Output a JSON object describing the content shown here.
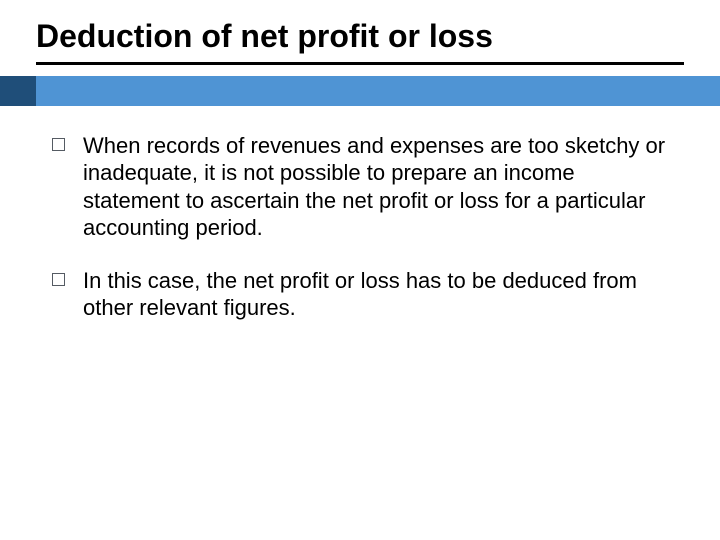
{
  "slide": {
    "title": "Deduction of net profit or loss",
    "title_fontsize": 32,
    "title_color": "#000000",
    "underline_color": "#000000",
    "accent_bar": {
      "left_color": "#1f4e79",
      "right_color": "#4f94d4",
      "height": 30,
      "left_width": 36
    },
    "background_color": "#ffffff",
    "bullets": [
      {
        "text": "When records of revenues and expenses are too sketchy or inadequate, it is not possible to prepare an income statement to ascertain the net profit or loss for a particular accounting period."
      },
      {
        "text": "In this case, the net profit or loss has to be deduced from other relevant figures."
      }
    ],
    "bullet_marker_border_color": "#555b63",
    "body_fontsize": 22,
    "body_color": "#000000"
  }
}
